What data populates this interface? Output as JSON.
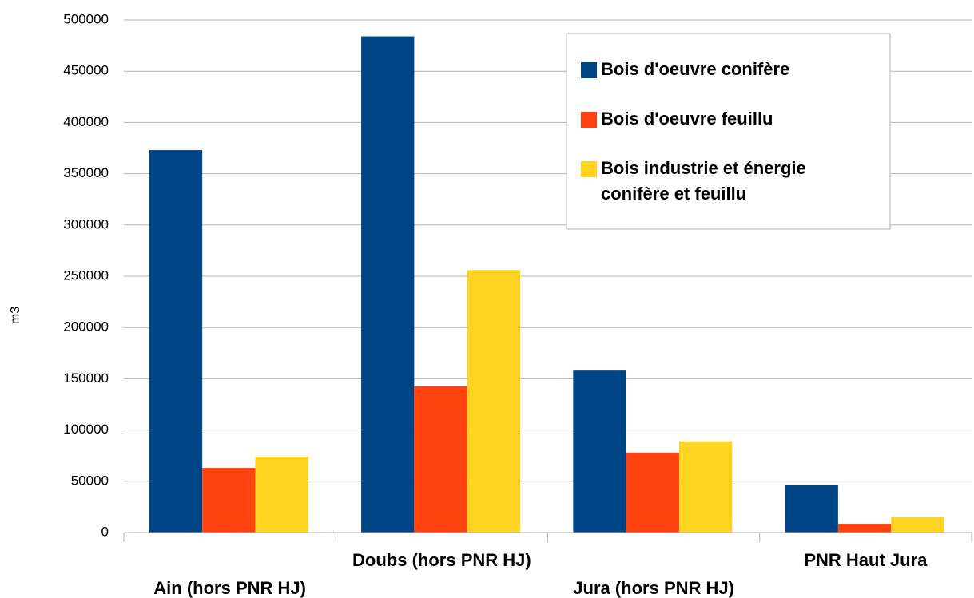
{
  "chart_data": {
    "type": "bar",
    "ylabel": "m3",
    "categories": [
      "Ain (hors PNR HJ)",
      "Doubs (hors PNR HJ)",
      "Jura (hors PNR HJ)",
      "PNR Haut Jura"
    ],
    "series": [
      {
        "name": "Bois d'oeuvre conifère",
        "color": "#004586",
        "values": [
          373000,
          484000,
          158000,
          46000
        ]
      },
      {
        "name": "Bois d'oeuvre feuillu",
        "color": "#ff420e",
        "values": [
          63000,
          142500,
          78000,
          8500
        ]
      },
      {
        "name": "Bois industrie et énergie conifère et feuillu",
        "color": "#ffd320",
        "values": [
          74000,
          256000,
          89000,
          15000
        ]
      }
    ],
    "ylim": [
      0,
      500000
    ],
    "yticks": [
      0,
      50000,
      100000,
      150000,
      200000,
      250000,
      300000,
      350000,
      400000,
      450000,
      500000
    ],
    "grid": true,
    "legend": "upper right"
  }
}
